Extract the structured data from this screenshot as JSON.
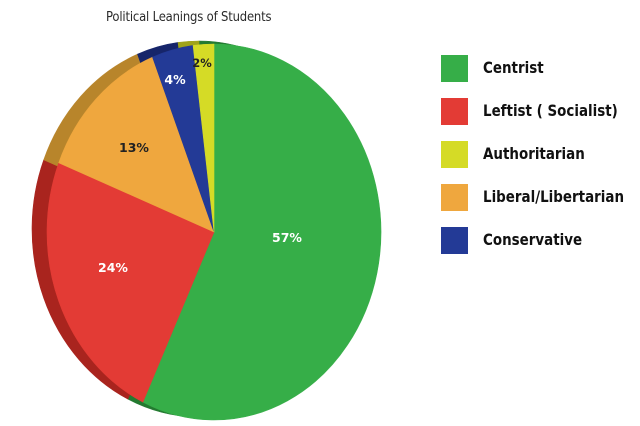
{
  "chart_data": {
    "type": "pie",
    "title": "Political Leanings of Students",
    "categories": [
      "Centrist",
      "Leftist ( Socialist)",
      "Liberal/Libertarian",
      "Conservative",
      "Authoritarian"
    ],
    "values": [
      57,
      24,
      13,
      4,
      2
    ],
    "unit": "%",
    "slice_order": "clockwise from top",
    "slices": [
      {
        "label": "Centrist",
        "value": 57,
        "display": "57%",
        "color": "#36AE48",
        "side": "#237A30",
        "text_color": "#ffffff"
      },
      {
        "label": "Leftist ( Socialist)",
        "value": 24,
        "display": "24%",
        "color": "#E33B35",
        "side": "#A9241E",
        "text_color": "#ffffff"
      },
      {
        "label": "Liberal/Libertarian",
        "value": 13,
        "display": "13%",
        "color": "#EFA73E",
        "side": "#B8852B",
        "text_color": "#222222"
      },
      {
        "label": "Conservative",
        "value": 4,
        "display": "4%",
        "color": "#233A96",
        "side": "#16256A",
        "text_color": "#ffffff"
      },
      {
        "label": "Authoritarian",
        "value": 2,
        "display": "2%",
        "color": "#D5DB26",
        "side": "#9FA31A",
        "text_color": "#222222"
      }
    ],
    "legend": {
      "position": "right",
      "entries": [
        {
          "label": "Centrist",
          "color": "#36AE48"
        },
        {
          "label": "Leftist ( Socialist)",
          "color": "#E33B35"
        },
        {
          "label": "Authoritarian",
          "color": "#D5DB26"
        },
        {
          "label": "Liberal/Libertarian",
          "color": "#EFA73E"
        },
        {
          "label": "Conservative",
          "color": "#233A96"
        }
      ]
    },
    "style": "3D tilted pie"
  },
  "labels": {
    "title": "Political Leanings of Students",
    "slice": [
      "57%",
      "24%",
      "13%",
      "4%",
      "2%"
    ],
    "legend": [
      "Centrist",
      "Leftist ( Socialist)",
      "Authoritarian",
      "Liberal/Libertarian",
      "Conservative"
    ]
  }
}
